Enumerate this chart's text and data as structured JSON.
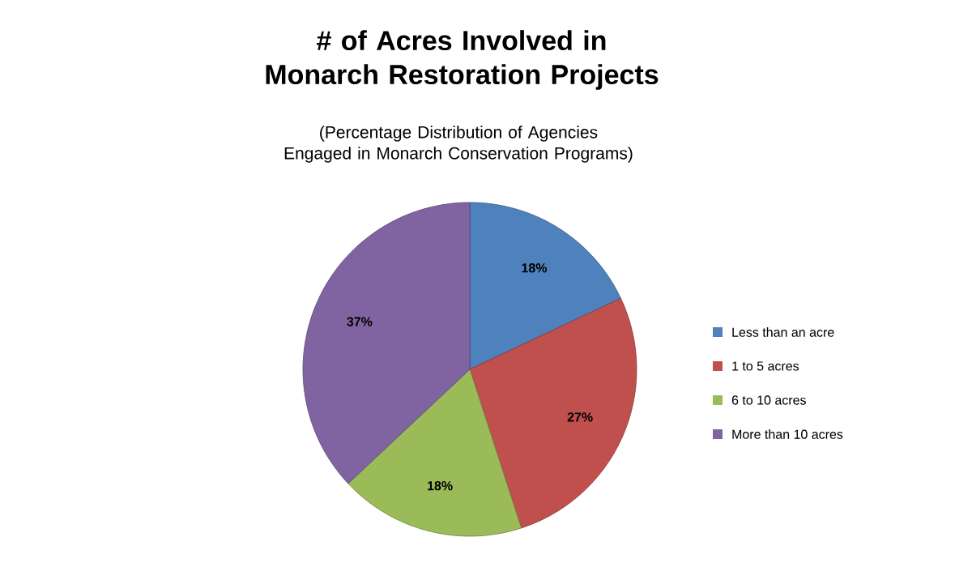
{
  "chart_data": {
    "type": "pie",
    "title": "# of Acres Involved in Monarch Restoration Projects",
    "subtitle": "(Percentage Distribution of Agencies Engaged in Monarch Conservation Programs)",
    "categories": [
      "Less than an acre",
      "1 to 5 acres",
      "6 to 10 acres",
      "More than 10 acres"
    ],
    "values": [
      18,
      27,
      18,
      37
    ],
    "colors": [
      "#4f81bd",
      "#c0504d",
      "#9bbb59",
      "#8064a2"
    ],
    "value_labels": [
      "18%",
      "27%",
      "18%",
      "37%"
    ],
    "legend": "right"
  }
}
